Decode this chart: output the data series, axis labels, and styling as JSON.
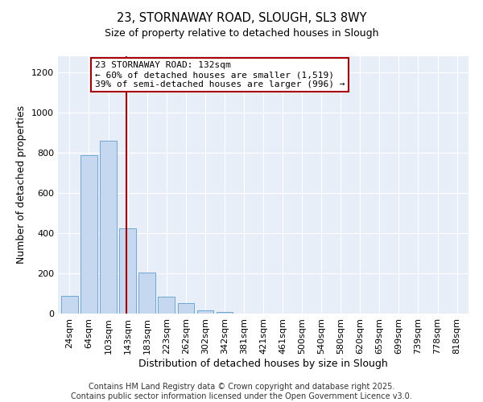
{
  "title": "23, STORNAWAY ROAD, SLOUGH, SL3 8WY",
  "subtitle": "Size of property relative to detached houses in Slough",
  "xlabel": "Distribution of detached houses by size in Slough",
  "ylabel": "Number of detached properties",
  "bar_labels": [
    "24sqm",
    "64sqm",
    "103sqm",
    "143sqm",
    "183sqm",
    "223sqm",
    "262sqm",
    "302sqm",
    "342sqm",
    "381sqm",
    "421sqm",
    "461sqm",
    "500sqm",
    "540sqm",
    "580sqm",
    "620sqm",
    "659sqm",
    "699sqm",
    "739sqm",
    "778sqm",
    "818sqm"
  ],
  "bar_values": [
    90,
    790,
    860,
    425,
    205,
    83,
    52,
    18,
    8,
    2,
    0,
    0,
    0,
    0,
    0,
    0,
    0,
    0,
    0,
    0,
    2
  ],
  "bar_color": "#c5d8f0",
  "bar_edge_color": "#6fa8d4",
  "ylim": [
    0,
    1280
  ],
  "yticks": [
    0,
    200,
    400,
    600,
    800,
    1000,
    1200
  ],
  "vline_x_index": 3,
  "vline_color": "#aa0000",
  "annotation_title": "23 STORNAWAY ROAD: 132sqm",
  "annotation_line1": "← 60% of detached houses are smaller (1,519)",
  "annotation_line2": "39% of semi-detached houses are larger (996) →",
  "annotation_box_facecolor": "#ffffff",
  "annotation_box_edgecolor": "#aa0000",
  "footer1": "Contains HM Land Registry data © Crown copyright and database right 2025.",
  "footer2": "Contains public sector information licensed under the Open Government Licence v3.0.",
  "bg_color": "#ffffff",
  "plot_bg_color": "#e8eef8",
  "grid_color": "#ffffff",
  "title_fontsize": 10.5,
  "subtitle_fontsize": 9,
  "axis_label_fontsize": 9,
  "tick_fontsize": 8,
  "annotation_fontsize": 8,
  "footer_fontsize": 7
}
